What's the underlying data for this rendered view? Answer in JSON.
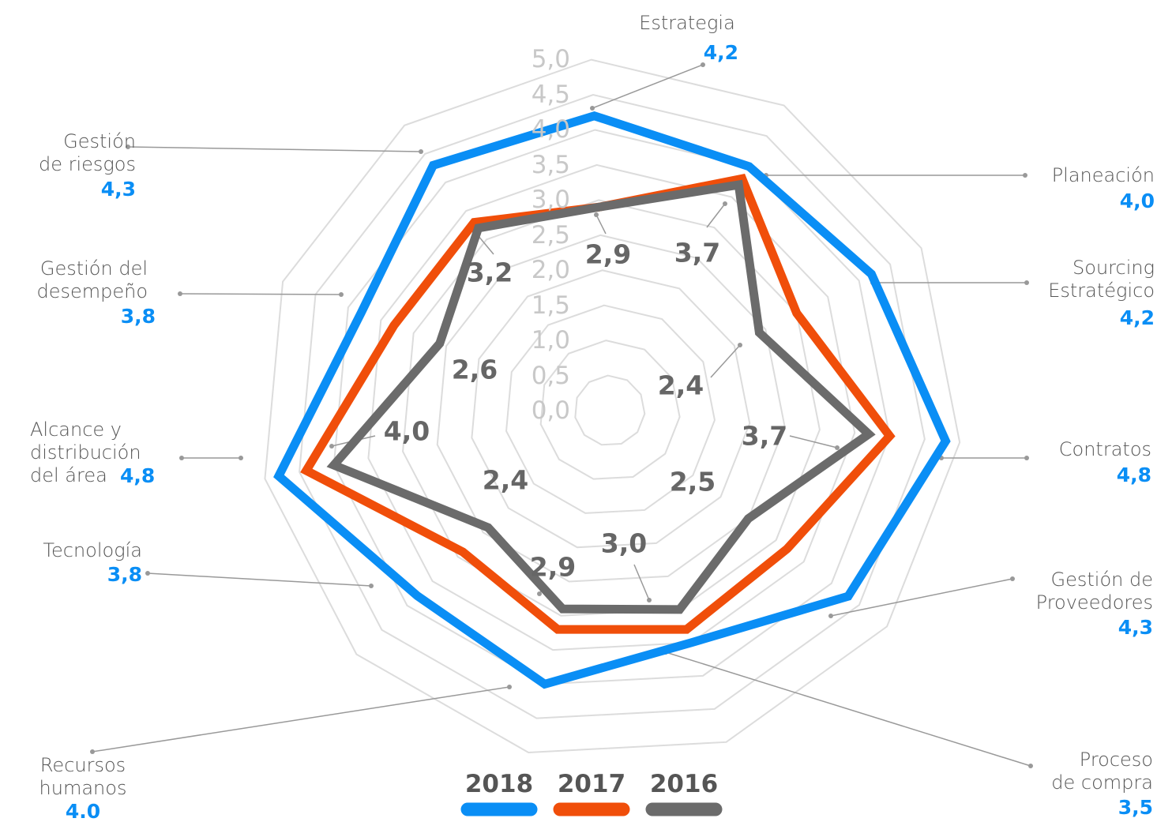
{
  "chart_data": {
    "type": "radar",
    "categories": [
      "Estrategia",
      "Planeación",
      "Sourcing\nEstratégico",
      "Contratos",
      "Gestión de\nProveedores",
      "Proceso\nde compra",
      "Recursos\nhumanos",
      "Tecnología",
      "Alcance y\ndistribución\ndel área",
      "Gestión del\ndesempeño",
      "Gestión\nde riesgos"
    ],
    "series": [
      {
        "name": "2018",
        "color": "#0a8ef5",
        "values": [
          4.2,
          4.0,
          4.2,
          4.8,
          4.3,
          3.5,
          4.0,
          3.8,
          4.8,
          3.8,
          4.3
        ],
        "value_labels": [
          "4,2",
          "4,0",
          "4,2",
          "4,8",
          "4,3",
          "3,5",
          "4.0",
          "3,8",
          "4,8",
          "3,8",
          "4,3"
        ]
      },
      {
        "name": "2017",
        "color": "#f04e0a",
        "values": [
          2.9,
          3.8,
          3.0,
          4.0,
          3.2,
          3.3,
          3.2,
          2.9,
          4.4,
          3.3,
          3.3
        ]
      },
      {
        "name": "2016",
        "color": "#6b6b6b",
        "values": [
          2.9,
          3.7,
          2.4,
          3.7,
          2.5,
          3.0,
          2.9,
          2.4,
          4.0,
          2.6,
          3.2
        ],
        "value_labels": [
          "2,9",
          "3,7",
          "2,4",
          "3,7",
          "2,5",
          "3,0",
          "2,9",
          "2,4",
          "4,0",
          "2,6",
          "3,2"
        ]
      }
    ],
    "rlim": [
      0,
      5
    ],
    "rticks": [
      {
        "value": 0,
        "label": "0,0"
      },
      {
        "value": 0.5,
        "label": "0,5"
      },
      {
        "value": 1,
        "label": "1,0"
      },
      {
        "value": 1.5,
        "label": "1,5"
      },
      {
        "value": 2,
        "label": "2,0"
      },
      {
        "value": 2.5,
        "label": "2,5"
      },
      {
        "value": 3,
        "label": "3,0"
      },
      {
        "value": 3.5,
        "label": "3,5"
      },
      {
        "value": 4,
        "label": "4,0"
      },
      {
        "value": 4.5,
        "label": "4,5"
      },
      {
        "value": 5,
        "label": "5,0"
      }
    ],
    "grid": true
  }
}
